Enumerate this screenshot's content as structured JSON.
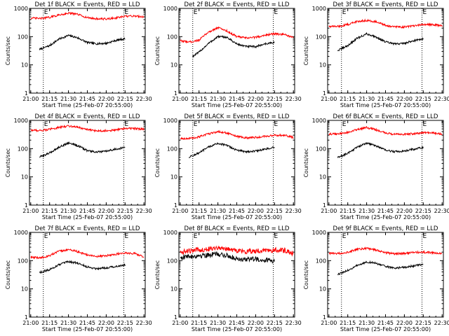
{
  "colors": {
    "events": "#000000",
    "lld": "#ff0000",
    "background": "#ffffff",
    "axis": "#000000"
  },
  "shared": {
    "ylabel": "Counts/sec",
    "xlabel": "Start Time (25-Feb-07 20:55:00)",
    "xticks": [
      "21:00",
      "21:15",
      "21:30",
      "21:45",
      "22:00",
      "22:15",
      "22:30"
    ],
    "yticks": [
      "1",
      "10",
      "100",
      "1000"
    ],
    "eclipse_marker": "E",
    "eclipse_times": [
      "21:10",
      "22:14"
    ],
    "xlim": [
      "20:59",
      "22:31"
    ],
    "ylim": [
      1,
      1000
    ],
    "yscale": "log",
    "grid": "dotted vertical lines at eclipse start and end"
  },
  "chart_data": [
    {
      "type": "line",
      "title": "Det 1f BLACK = Events, RED = LLD",
      "series": [
        {
          "name": "Events",
          "color": "#000000",
          "x": [
            "21:07",
            "21:15",
            "21:22",
            "21:30",
            "21:37",
            "21:45",
            "21:52",
            "22:00",
            "22:07",
            "22:15"
          ],
          "values": [
            35,
            48,
            80,
            110,
            92,
            62,
            56,
            58,
            72,
            85
          ]
        },
        {
          "name": "LLD",
          "color": "#ff0000",
          "x": [
            "21:00",
            "21:08",
            "21:15",
            "21:22",
            "21:30",
            "21:37",
            "21:45",
            "21:52",
            "22:00",
            "22:08",
            "22:15",
            "22:23",
            "22:30"
          ],
          "values": [
            450,
            440,
            480,
            580,
            680,
            620,
            470,
            430,
            420,
            460,
            520,
            540,
            500
          ]
        }
      ]
    },
    {
      "type": "line",
      "title": "Det 2f BLACK = Events, RED = LLD",
      "series": [
        {
          "name": "Events",
          "color": "#000000",
          "x": [
            "21:10",
            "21:15",
            "21:22",
            "21:30",
            "21:37",
            "21:45",
            "21:52",
            "22:00",
            "22:07",
            "22:15"
          ],
          "values": [
            20,
            28,
            55,
            100,
            95,
            55,
            45,
            44,
            55,
            62
          ]
        },
        {
          "name": "LLD",
          "color": "#ff0000",
          "x": [
            "21:00",
            "21:08",
            "21:15",
            "21:22",
            "21:30",
            "21:37",
            "21:45",
            "21:52",
            "22:00",
            "22:08",
            "22:15",
            "22:23",
            "22:30"
          ],
          "values": [
            70,
            65,
            75,
            140,
            210,
            160,
            100,
            90,
            95,
            115,
            125,
            118,
            90
          ]
        }
      ]
    },
    {
      "type": "line",
      "title": "Det 3f BLACK = Events, RED = LLD",
      "series": [
        {
          "name": "Events",
          "color": "#000000",
          "x": [
            "21:07",
            "21:15",
            "21:22",
            "21:30",
            "21:37",
            "21:45",
            "21:52",
            "22:00",
            "22:07",
            "22:15"
          ],
          "values": [
            32,
            48,
            85,
            125,
            100,
            65,
            55,
            58,
            72,
            82
          ]
        },
        {
          "name": "LLD",
          "color": "#ff0000",
          "x": [
            "21:00",
            "21:08",
            "21:15",
            "21:22",
            "21:30",
            "21:37",
            "21:45",
            "21:52",
            "22:00",
            "22:08",
            "22:15",
            "22:23",
            "22:30"
          ],
          "values": [
            230,
            230,
            270,
            340,
            380,
            340,
            250,
            220,
            220,
            240,
            270,
            265,
            240
          ]
        }
      ]
    },
    {
      "type": "line",
      "title": "Det 4f BLACK = Events, RED = LLD",
      "series": [
        {
          "name": "Events",
          "color": "#000000",
          "x": [
            "21:07",
            "21:15",
            "21:22",
            "21:30",
            "21:37",
            "21:45",
            "21:52",
            "22:00",
            "22:07",
            "22:15"
          ],
          "values": [
            50,
            70,
            110,
            160,
            130,
            85,
            75,
            80,
            95,
            110
          ]
        },
        {
          "name": "LLD",
          "color": "#ff0000",
          "x": [
            "21:00",
            "21:08",
            "21:15",
            "21:22",
            "21:30",
            "21:37",
            "21:45",
            "21:52",
            "22:00",
            "22:08",
            "22:15",
            "22:23",
            "22:30"
          ],
          "values": [
            450,
            440,
            480,
            560,
            640,
            580,
            470,
            430,
            430,
            460,
            520,
            520,
            480
          ]
        }
      ]
    },
    {
      "type": "line",
      "title": "Det 5f BLACK = Events, RED = LLD",
      "series": [
        {
          "name": "Events",
          "color": "#000000",
          "x": [
            "21:07",
            "21:15",
            "21:22",
            "21:30",
            "21:37",
            "21:45",
            "21:52",
            "22:00",
            "22:07",
            "22:15"
          ],
          "values": [
            50,
            70,
            110,
            155,
            130,
            88,
            78,
            82,
            95,
            110
          ]
        },
        {
          "name": "LLD",
          "color": "#ff0000",
          "x": [
            "21:00",
            "21:08",
            "21:15",
            "21:22",
            "21:30",
            "21:37",
            "21:45",
            "21:52",
            "22:00",
            "22:08",
            "22:15",
            "22:23",
            "22:30"
          ],
          "values": [
            230,
            230,
            260,
            330,
            400,
            360,
            270,
            240,
            250,
            270,
            300,
            295,
            250
          ]
        }
      ]
    },
    {
      "type": "line",
      "title": "Det 6f BLACK = Events, RED = LLD",
      "series": [
        {
          "name": "Events",
          "color": "#000000",
          "x": [
            "21:07",
            "21:15",
            "21:22",
            "21:30",
            "21:37",
            "21:45",
            "21:52",
            "22:00",
            "22:07",
            "22:15"
          ],
          "values": [
            48,
            68,
            110,
            155,
            130,
            88,
            78,
            82,
            95,
            110
          ]
        },
        {
          "name": "LLD",
          "color": "#ff0000",
          "x": [
            "21:00",
            "21:08",
            "21:15",
            "21:22",
            "21:30",
            "21:37",
            "21:45",
            "21:52",
            "22:00",
            "22:08",
            "22:15",
            "22:23",
            "22:30"
          ],
          "values": [
            330,
            330,
            380,
            460,
            560,
            470,
            360,
            320,
            320,
            340,
            370,
            360,
            330
          ]
        }
      ]
    },
    {
      "type": "line",
      "title": "Det 7f BLACK = Events, RED = LLD",
      "series": [
        {
          "name": "Events",
          "color": "#000000",
          "x": [
            "21:07",
            "21:15",
            "21:22",
            "21:30",
            "21:37",
            "21:45",
            "21:52",
            "22:00",
            "22:07",
            "22:15"
          ],
          "values": [
            38,
            48,
            70,
            92,
            82,
            60,
            52,
            56,
            62,
            70
          ]
        },
        {
          "name": "LLD",
          "color": "#ff0000",
          "x": [
            "21:00",
            "21:08",
            "21:15",
            "21:22",
            "21:30",
            "21:37",
            "21:45",
            "21:52",
            "22:00",
            "22:08",
            "22:15",
            "22:23",
            "22:30"
          ],
          "values": [
            130,
            125,
            150,
            210,
            250,
            210,
            160,
            140,
            150,
            170,
            185,
            180,
            135
          ]
        }
      ]
    },
    {
      "type": "line",
      "title": "Det 8f BLACK = Events, RED = LLD",
      "series": [
        {
          "name": "Events",
          "color": "#000000",
          "x": [
            "21:00",
            "21:07",
            "21:15",
            "21:22",
            "21:30",
            "21:37",
            "21:45",
            "21:52",
            "22:00",
            "22:07",
            "22:15"
          ],
          "values": [
            130,
            140,
            150,
            160,
            170,
            150,
            120,
            110,
            115,
            105,
            100
          ]
        },
        {
          "name": "LLD",
          "color": "#ff0000",
          "x": [
            "21:00",
            "21:08",
            "21:15",
            "21:22",
            "21:30",
            "21:37",
            "21:45",
            "21:52",
            "22:00",
            "22:08",
            "22:15",
            "22:23",
            "22:30"
          ],
          "values": [
            200,
            220,
            240,
            260,
            290,
            260,
            230,
            210,
            220,
            230,
            240,
            230,
            180
          ]
        }
      ]
    },
    {
      "type": "line",
      "title": "Det 9f BLACK = Events, RED = LLD",
      "series": [
        {
          "name": "Events",
          "color": "#000000",
          "x": [
            "21:07",
            "21:15",
            "21:22",
            "21:30",
            "21:37",
            "21:45",
            "21:52",
            "22:00",
            "22:07",
            "22:15"
          ],
          "values": [
            32,
            45,
            65,
            90,
            82,
            62,
            55,
            58,
            65,
            75
          ]
        },
        {
          "name": "LLD",
          "color": "#ff0000",
          "x": [
            "21:00",
            "21:08",
            "21:15",
            "21:22",
            "21:30",
            "21:37",
            "21:45",
            "21:52",
            "22:00",
            "22:08",
            "22:15",
            "22:23",
            "22:30"
          ],
          "values": [
            180,
            180,
            200,
            250,
            270,
            240,
            190,
            175,
            180,
            195,
            200,
            190,
            175
          ]
        }
      ]
    }
  ]
}
